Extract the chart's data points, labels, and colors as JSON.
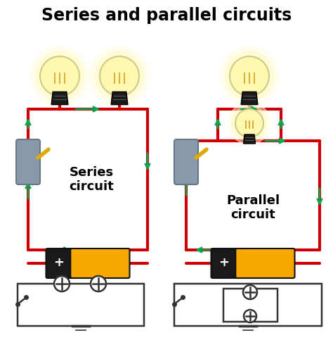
{
  "title": "Series and parallel circuits",
  "series_label": "Series\ncircuit",
  "parallel_label": "Parallel\ncircuit",
  "bg_color": "#ffffff",
  "circuit_line_color": "#cc0000",
  "arrow_color": "#00aa55",
  "battery_dark": "#1a1a1a",
  "battery_light": "#f5a800",
  "switch_body_color": "#8899aa",
  "switch_handle_color": "#ddaa00",
  "bulb_glow_color": "#fffde0",
  "bulb_glass_color": "#fff5a0",
  "bulb_base_color": "#1a1a1a",
  "schematic_color": "#333333"
}
